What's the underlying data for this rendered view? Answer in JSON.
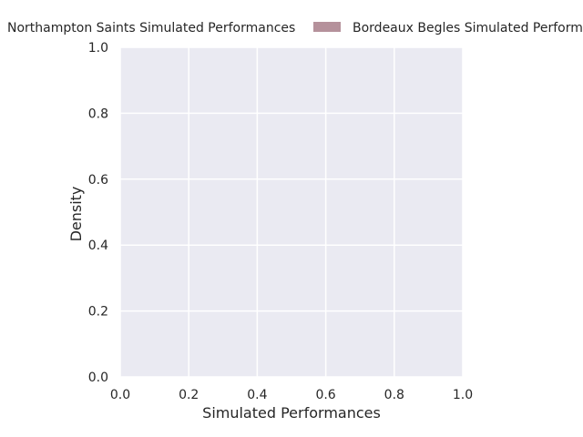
{
  "chart_data": {
    "type": "area",
    "title": "",
    "xlabel": "Simulated Performances",
    "ylabel": "Density",
    "xlim": [
      0.0,
      1.0
    ],
    "ylim": [
      0.0,
      1.0
    ],
    "x_ticks": [
      "0.0",
      "0.2",
      "0.4",
      "0.6",
      "0.8",
      "1.0"
    ],
    "y_ticks": [
      "0.0",
      "0.2",
      "0.4",
      "0.6",
      "0.8",
      "1.0"
    ],
    "grid": true,
    "legend_position": "top, outside plot",
    "series": [
      {
        "name": "Northampton Saints Simulated Performances",
        "color": "#ffffff",
        "values": []
      },
      {
        "name": "Bordeaux Begles Simulated Performances",
        "color": "#b5919b",
        "values": []
      }
    ],
    "colors": {
      "plot_background": "#eaeaf2",
      "grid": "#ffffff",
      "text": "#262626"
    }
  }
}
